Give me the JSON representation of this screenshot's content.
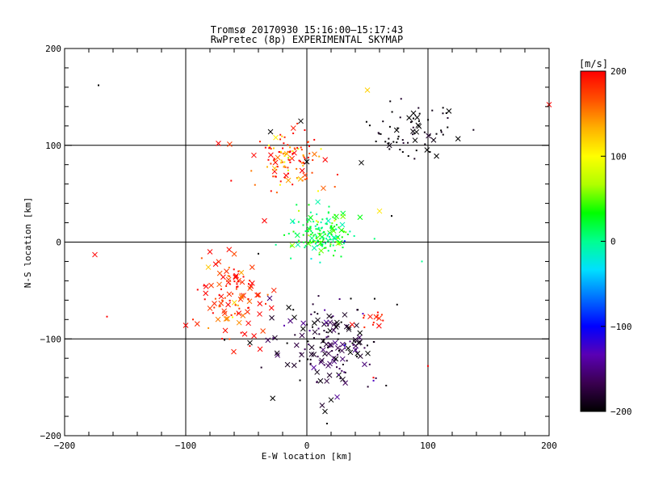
{
  "title_line1": "Tromsø 20170930 15:16:00–15:17:43",
  "title_line2": "RwPretec (8p) EXPERIMENTAL SKYMAP",
  "colors": {
    "background": "#ffffff",
    "axis": "#000000",
    "colorscale": [
      "#000000",
      "#3a0050",
      "#5a00b4",
      "#0000ff",
      "#0070ff",
      "#00e0ff",
      "#00ff90",
      "#00ff00",
      "#b0ff00",
      "#ffff00",
      "#ffb000",
      "#ff5000",
      "#ff0000"
    ]
  },
  "chart_data": {
    "type": "scatter",
    "xlabel": "E-W location [km]",
    "ylabel": "N-S location [km]",
    "xlim": [
      -200,
      200
    ],
    "ylim": [
      -200,
      200
    ],
    "x_ticks": [
      "−200",
      "−100",
      "0",
      "100",
      "200"
    ],
    "y_ticks": [
      "−200",
      "−100",
      "0",
      "100",
      "200"
    ],
    "x_tick_values": [
      -200,
      -100,
      0,
      100,
      200
    ],
    "y_tick_values": [
      -200,
      -100,
      0,
      100,
      200
    ],
    "grid": true,
    "colorbar": {
      "label": "[m/s]",
      "range": [
        -200,
        200
      ],
      "ticks": [
        "200",
        "100",
        "0",
        "−100",
        "−200"
      ],
      "tick_values": [
        200,
        100,
        0,
        -100,
        -200
      ]
    },
    "markers": [
      "dot",
      "x"
    ],
    "clusters": [
      {
        "cx": 90,
        "cy": 115,
        "sx": 18,
        "sy": 14,
        "n": 70,
        "v": -200,
        "vs": 10,
        "xfrac": 0.35
      },
      {
        "cx": -15,
        "cy": 85,
        "sx": 14,
        "sy": 14,
        "n": 120,
        "v": 170,
        "vs": 40,
        "xfrac": 0.2
      },
      {
        "cx": 10,
        "cy": 8,
        "sx": 14,
        "sy": 12,
        "n": 170,
        "v": 20,
        "vs": 25,
        "xfrac": 0.2
      },
      {
        "cx": -60,
        "cy": -55,
        "sx": 16,
        "sy": 20,
        "n": 110,
        "v": 185,
        "vs": 25,
        "xfrac": 0.5
      },
      {
        "cx": 20,
        "cy": -110,
        "sx": 22,
        "sy": 24,
        "n": 170,
        "v": -180,
        "vs": 25,
        "xfrac": 0.45
      },
      {
        "cx": 55,
        "cy": -80,
        "sx": 6,
        "sy": 5,
        "n": 14,
        "v": 190,
        "vs": 10,
        "xfrac": 0.6
      }
    ],
    "points": [
      {
        "x": -172,
        "y": 162,
        "v": -200,
        "m": "dot"
      },
      {
        "x": -175,
        "y": -13,
        "v": 200,
        "m": "x"
      },
      {
        "x": -165,
        "y": -77,
        "v": 200,
        "m": "dot"
      },
      {
        "x": -100,
        "y": -86,
        "v": 200,
        "m": "x"
      },
      {
        "x": 200,
        "y": 142,
        "v": 200,
        "m": "x"
      },
      {
        "x": 50,
        "y": 157,
        "v": 120,
        "m": "x"
      },
      {
        "x": 70,
        "y": 27,
        "v": -200,
        "m": "dot"
      },
      {
        "x": 60,
        "y": 32,
        "v": 110,
        "m": "x"
      },
      {
        "x": 15,
        "y": -175,
        "v": -200,
        "m": "x"
      },
      {
        "x": 20,
        "y": -163,
        "v": -200,
        "m": "x"
      },
      {
        "x": 100,
        "y": -128,
        "v": 200,
        "m": "dot"
      },
      {
        "x": 55,
        "y": -140,
        "v": 200,
        "m": "dot"
      },
      {
        "x": -30,
        "y": 114,
        "v": -200,
        "m": "x"
      },
      {
        "x": -5,
        "y": 125,
        "v": -200,
        "m": "x"
      },
      {
        "x": -35,
        "y": 22,
        "v": 200,
        "m": "x"
      },
      {
        "x": -80,
        "y": -10,
        "v": 200,
        "m": "x"
      },
      {
        "x": -85,
        "y": -45,
        "v": 200,
        "m": "dot"
      },
      {
        "x": -40,
        "y": -12,
        "v": -200,
        "m": "dot"
      },
      {
        "x": 95,
        "y": -20,
        "v": 0,
        "m": "dot"
      },
      {
        "x": -68,
        "y": -101,
        "v": -200,
        "m": "dot"
      },
      {
        "x": -47,
        "y": -104,
        "v": -200,
        "m": "x"
      },
      {
        "x": -73,
        "y": 102,
        "v": 200,
        "m": "x"
      },
      {
        "x": 45,
        "y": 82,
        "v": -200,
        "m": "x"
      },
      {
        "x": 0,
        "y": 83,
        "v": -200,
        "m": "x"
      }
    ]
  }
}
